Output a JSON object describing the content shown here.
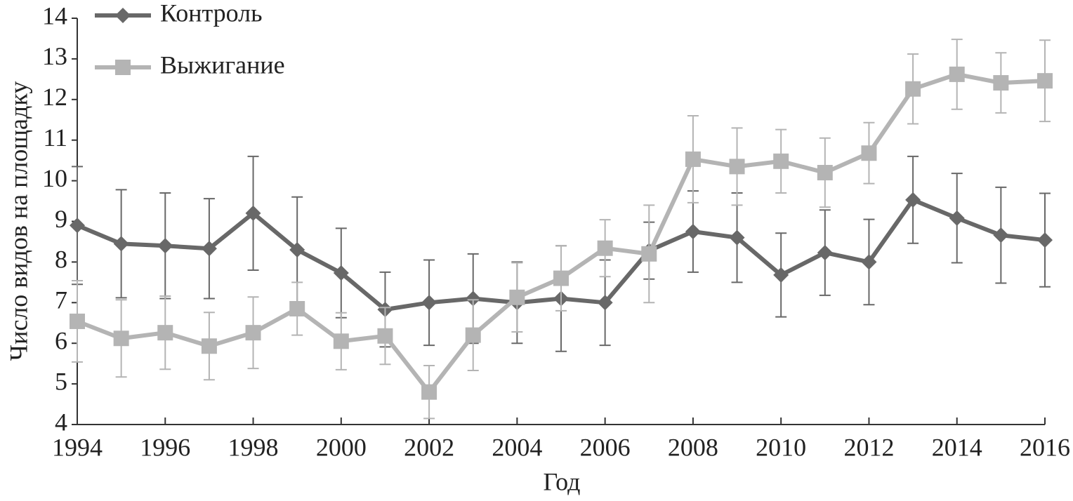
{
  "chart_data": {
    "type": "line",
    "y_label": "Число видов на площадку",
    "x_label": "Год",
    "x": [
      1994,
      1995,
      1996,
      1997,
      1998,
      1999,
      2000,
      2001,
      2002,
      2003,
      2004,
      2005,
      2006,
      2007,
      2008,
      2009,
      2010,
      2011,
      2012,
      2013,
      2014,
      2015,
      2016
    ],
    "xlim": [
      1994,
      2016
    ],
    "xticks": [
      1994,
      1996,
      1998,
      2000,
      2002,
      2004,
      2006,
      2008,
      2010,
      2012,
      2014,
      2016
    ],
    "ylim": [
      4,
      14
    ],
    "yticks": [
      4,
      5,
      6,
      7,
      8,
      9,
      10,
      11,
      12,
      13,
      14
    ],
    "legend": "top-left",
    "series": [
      {
        "name": "Контроль",
        "color": "#686868",
        "marker": "diamond",
        "values": [
          8.9,
          8.45,
          8.4,
          8.33,
          9.2,
          8.3,
          7.73,
          6.83,
          7.0,
          7.1,
          7.0,
          7.1,
          7.0,
          8.28,
          8.75,
          8.6,
          7.68,
          8.23,
          8.0,
          9.53,
          9.08,
          8.66,
          8.54
        ],
        "errors": [
          1.45,
          1.33,
          1.3,
          1.23,
          1.4,
          1.3,
          1.1,
          0.92,
          1.05,
          1.1,
          1.0,
          1.3,
          1.05,
          0.7,
          1.0,
          1.1,
          1.03,
          1.05,
          1.05,
          1.07,
          1.1,
          1.18,
          1.15
        ]
      },
      {
        "name": "Выжигание",
        "color": "#b4b4b4",
        "marker": "square",
        "values": [
          6.54,
          6.12,
          6.26,
          5.93,
          6.26,
          6.85,
          6.05,
          6.18,
          4.8,
          6.2,
          7.13,
          7.6,
          8.34,
          8.2,
          10.53,
          10.35,
          10.48,
          10.2,
          10.68,
          12.26,
          12.62,
          12.41,
          12.46
        ],
        "errors": [
          1.0,
          0.95,
          0.9,
          0.83,
          0.88,
          0.65,
          0.7,
          0.7,
          0.65,
          0.87,
          0.85,
          0.8,
          0.7,
          1.2,
          1.07,
          0.95,
          0.78,
          0.85,
          0.75,
          0.86,
          0.86,
          0.74,
          1.0
        ]
      }
    ]
  }
}
